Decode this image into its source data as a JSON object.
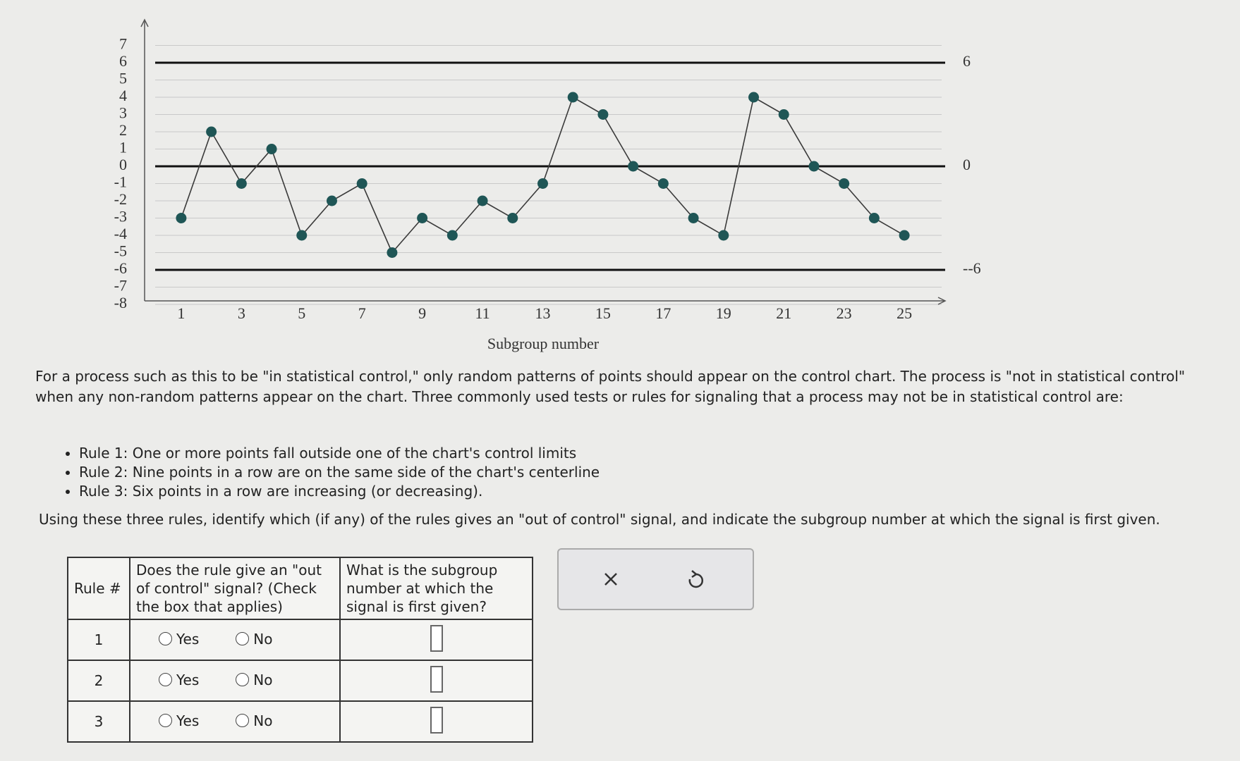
{
  "chart_data": {
    "type": "line",
    "x_label": "Subgroup number",
    "x": [
      1,
      2,
      3,
      4,
      5,
      6,
      7,
      8,
      9,
      10,
      11,
      12,
      13,
      14,
      15,
      16,
      17,
      18,
      19,
      20,
      21,
      22,
      23,
      24,
      25
    ],
    "values": [
      -3,
      2,
      -1,
      1,
      -4,
      -2,
      -1,
      -5,
      -3,
      -4,
      -2,
      -3,
      -1,
      4,
      3,
      0,
      -1,
      -3,
      -4,
      4,
      3,
      0,
      -1,
      -3,
      -4
    ],
    "color": "#1f5656",
    "line_color": "#3a3a3a",
    "xlim": [
      0.3,
      25.7
    ],
    "ylim": [
      -8,
      8
    ],
    "xticks": [
      1,
      3,
      5,
      7,
      9,
      11,
      13,
      15,
      17,
      19,
      21,
      23,
      25
    ],
    "yticks": [
      7,
      6,
      5,
      4,
      3,
      2,
      1,
      0,
      -1,
      -2,
      -3,
      -4,
      -5,
      -6,
      -7,
      -8
    ],
    "grid": true,
    "control_limits": [
      {
        "value": 6,
        "label": "6"
      },
      {
        "value": 0,
        "label": "0"
      },
      {
        "value": -6,
        "label": "--6"
      }
    ]
  },
  "text": {
    "intro": "For a process such as this to be \"in statistical control,\" only random patterns of points should appear on the control chart. The process is \"not in statistical control\" when any non-random patterns appear on the chart. Three commonly used tests or rules for signaling that a process may not be in statistical control are:",
    "rules": [
      "Rule 1: One or more points fall outside one of the chart's control limits",
      "Rule 2: Nine points in a row are on the same side of the chart's centerline",
      "Rule 3: Six points in a row are increasing (or decreasing)."
    ],
    "question": "Using these three rules, identify which (if any) of the rules gives an \"out of control\" signal, and indicate the subgroup number at which the signal is first given."
  },
  "table": {
    "header": [
      "Rule #",
      "Does the rule give an \"out of control\" signal? (Check the box that applies)",
      "What is the subgroup number at which the signal is first given?"
    ],
    "rows": [
      [
        "1",
        "Yes",
        "No"
      ],
      [
        "2",
        "Yes",
        "No"
      ],
      [
        "3",
        "Yes",
        "No"
      ]
    ]
  }
}
